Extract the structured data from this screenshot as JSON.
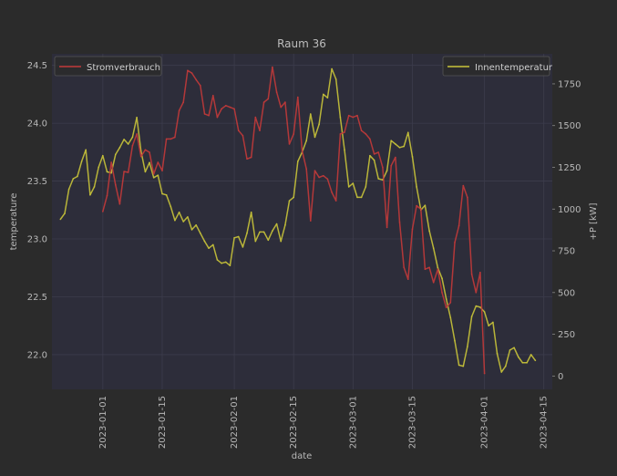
{
  "chart_data": {
    "type": "line",
    "title": "Raum 36",
    "xlabel": "date",
    "ylabel_left": "temperature",
    "ylabel_right": "+P [kW]",
    "x_ticks": [
      "2023-01-01",
      "2023-01-15",
      "2023-02-01",
      "2023-02-15",
      "2023-03-01",
      "2023-03-15",
      "2023-04-01",
      "2023-04-15"
    ],
    "x_range": [
      "2022-12-20",
      "2023-04-17"
    ],
    "y_left_ticks": [
      22.0,
      22.5,
      23.0,
      23.5,
      24.0,
      24.5
    ],
    "y_left_range": [
      21.7,
      24.6
    ],
    "y_right_ticks": [
      0,
      250,
      500,
      750,
      1000,
      1250,
      1500,
      1750
    ],
    "y_right_range": [
      -80,
      1930
    ],
    "grid": true,
    "series": [
      {
        "name": "Innentemperatur",
        "axis": "left",
        "color": "#c9c43a",
        "legend_position": "top-right",
        "points": [
          [
            "2022-12-22",
            23.17
          ],
          [
            "2022-12-23",
            23.22
          ],
          [
            "2022-12-24",
            23.43
          ],
          [
            "2022-12-25",
            23.52
          ],
          [
            "2022-12-26",
            23.54
          ],
          [
            "2022-12-27",
            23.67
          ],
          [
            "2022-12-28",
            23.77
          ],
          [
            "2022-12-29",
            23.38
          ],
          [
            "2022-12-30",
            23.45
          ],
          [
            "2022-12-31",
            23.62
          ],
          [
            "2023-01-01",
            23.72
          ],
          [
            "2023-01-02",
            23.58
          ],
          [
            "2023-01-03",
            23.57
          ],
          [
            "2023-01-04",
            23.73
          ],
          [
            "2023-01-05",
            23.79
          ],
          [
            "2023-01-06",
            23.86
          ],
          [
            "2023-01-07",
            23.82
          ],
          [
            "2023-01-08",
            23.88
          ],
          [
            "2023-01-09",
            24.05
          ],
          [
            "2023-01-10",
            23.76
          ],
          [
            "2023-01-11",
            23.58
          ],
          [
            "2023-01-12",
            23.66
          ],
          [
            "2023-01-13",
            23.53
          ],
          [
            "2023-01-14",
            23.55
          ],
          [
            "2023-01-15",
            23.39
          ],
          [
            "2023-01-16",
            23.38
          ],
          [
            "2023-01-17",
            23.28
          ],
          [
            "2023-01-18",
            23.16
          ],
          [
            "2023-01-19",
            23.23
          ],
          [
            "2023-01-20",
            23.15
          ],
          [
            "2023-01-21",
            23.19
          ],
          [
            "2023-01-22",
            23.08
          ],
          [
            "2023-01-23",
            23.12
          ],
          [
            "2023-01-24",
            23.05
          ],
          [
            "2023-01-25",
            22.98
          ],
          [
            "2023-01-26",
            22.92
          ],
          [
            "2023-01-27",
            22.95
          ],
          [
            "2023-01-28",
            22.82
          ],
          [
            "2023-01-29",
            22.79
          ],
          [
            "2023-01-30",
            22.8
          ],
          [
            "2023-01-31",
            22.77
          ],
          [
            "2023-02-01",
            23.01
          ],
          [
            "2023-02-02",
            23.02
          ],
          [
            "2023-02-03",
            22.93
          ],
          [
            "2023-02-04",
            23.05
          ],
          [
            "2023-02-05",
            23.23
          ],
          [
            "2023-02-06",
            22.98
          ],
          [
            "2023-02-07",
            23.06
          ],
          [
            "2023-02-08",
            23.06
          ],
          [
            "2023-02-09",
            22.99
          ],
          [
            "2023-02-10",
            23.07
          ],
          [
            "2023-02-11",
            23.13
          ],
          [
            "2023-02-12",
            22.98
          ],
          [
            "2023-02-13",
            23.12
          ],
          [
            "2023-02-14",
            23.33
          ],
          [
            "2023-02-15",
            23.36
          ],
          [
            "2023-02-16",
            23.67
          ],
          [
            "2023-02-17",
            23.75
          ],
          [
            "2023-02-18",
            23.85
          ],
          [
            "2023-02-19",
            24.08
          ],
          [
            "2023-02-20",
            23.88
          ],
          [
            "2023-02-21",
            23.99
          ],
          [
            "2023-02-22",
            24.25
          ],
          [
            "2023-02-23",
            24.22
          ],
          [
            "2023-02-24",
            24.47
          ],
          [
            "2023-02-25",
            24.38
          ],
          [
            "2023-02-26",
            24.05
          ],
          [
            "2023-02-27",
            23.77
          ],
          [
            "2023-02-28",
            23.45
          ],
          [
            "2023-03-01",
            23.48
          ],
          [
            "2023-03-02",
            23.36
          ],
          [
            "2023-03-03",
            23.36
          ],
          [
            "2023-03-04",
            23.45
          ],
          [
            "2023-03-05",
            23.72
          ],
          [
            "2023-03-06",
            23.68
          ],
          [
            "2023-03-07",
            23.52
          ],
          [
            "2023-03-08",
            23.51
          ],
          [
            "2023-03-09",
            23.59
          ],
          [
            "2023-03-10",
            23.85
          ],
          [
            "2023-03-11",
            23.82
          ],
          [
            "2023-03-12",
            23.79
          ],
          [
            "2023-03-13",
            23.8
          ],
          [
            "2023-03-14",
            23.92
          ],
          [
            "2023-03-15",
            23.71
          ],
          [
            "2023-03-16",
            23.45
          ],
          [
            "2023-03-17",
            23.25
          ],
          [
            "2023-03-18",
            23.29
          ],
          [
            "2023-03-19",
            23.07
          ],
          [
            "2023-03-20",
            22.92
          ],
          [
            "2023-03-21",
            22.75
          ],
          [
            "2023-03-22",
            22.66
          ],
          [
            "2023-03-23",
            22.48
          ],
          [
            "2023-03-24",
            22.32
          ],
          [
            "2023-03-25",
            22.12
          ],
          [
            "2023-03-26",
            21.91
          ],
          [
            "2023-03-27",
            21.9
          ],
          [
            "2023-03-28",
            22.07
          ],
          [
            "2023-03-29",
            22.33
          ],
          [
            "2023-03-30",
            22.42
          ],
          [
            "2023-03-31",
            22.41
          ],
          [
            "2023-04-01",
            22.37
          ],
          [
            "2023-04-02",
            22.25
          ],
          [
            "2023-04-03",
            22.28
          ],
          [
            "2023-04-04",
            22.01
          ],
          [
            "2023-04-05",
            21.85
          ],
          [
            "2023-04-06",
            21.9
          ],
          [
            "2023-04-07",
            22.04
          ],
          [
            "2023-04-08",
            22.06
          ],
          [
            "2023-04-09",
            21.98
          ],
          [
            "2023-04-10",
            21.93
          ],
          [
            "2023-04-11",
            21.93
          ],
          [
            "2023-04-12",
            22.0
          ],
          [
            "2023-04-13",
            21.95
          ]
        ]
      },
      {
        "name": "Stromverbrauch",
        "axis": "right",
        "color": "#c23a3a",
        "legend_position": "top-left",
        "points": [
          [
            "2023-01-01",
            985
          ],
          [
            "2023-01-02",
            1080
          ],
          [
            "2023-01-03",
            1280
          ],
          [
            "2023-01-04",
            1145
          ],
          [
            "2023-01-05",
            1030
          ],
          [
            "2023-01-06",
            1225
          ],
          [
            "2023-01-07",
            1220
          ],
          [
            "2023-01-08",
            1380
          ],
          [
            "2023-01-09",
            1450
          ],
          [
            "2023-01-10",
            1315
          ],
          [
            "2023-01-11",
            1355
          ],
          [
            "2023-01-12",
            1340
          ],
          [
            "2023-01-13",
            1210
          ],
          [
            "2023-01-14",
            1280
          ],
          [
            "2023-01-15",
            1230
          ],
          [
            "2023-01-16",
            1420
          ],
          [
            "2023-01-17",
            1420
          ],
          [
            "2023-01-18",
            1430
          ],
          [
            "2023-01-19",
            1590
          ],
          [
            "2023-01-20",
            1640
          ],
          [
            "2023-01-21",
            1830
          ],
          [
            "2023-01-22",
            1815
          ],
          [
            "2023-01-23",
            1775
          ],
          [
            "2023-01-24",
            1740
          ],
          [
            "2023-01-25",
            1570
          ],
          [
            "2023-01-26",
            1560
          ],
          [
            "2023-01-27",
            1680
          ],
          [
            "2023-01-28",
            1550
          ],
          [
            "2023-01-29",
            1600
          ],
          [
            "2023-01-30",
            1620
          ],
          [
            "2023-01-31",
            1610
          ],
          [
            "2023-02-01",
            1600
          ],
          [
            "2023-02-02",
            1470
          ],
          [
            "2023-02-03",
            1440
          ],
          [
            "2023-02-04",
            1300
          ],
          [
            "2023-02-05",
            1310
          ],
          [
            "2023-02-06",
            1550
          ],
          [
            "2023-02-07",
            1470
          ],
          [
            "2023-02-08",
            1640
          ],
          [
            "2023-02-09",
            1660
          ],
          [
            "2023-02-10",
            1850
          ],
          [
            "2023-02-11",
            1700
          ],
          [
            "2023-02-12",
            1610
          ],
          [
            "2023-02-13",
            1640
          ],
          [
            "2023-02-14",
            1390
          ],
          [
            "2023-02-15",
            1450
          ],
          [
            "2023-02-16",
            1670
          ],
          [
            "2023-02-17",
            1350
          ],
          [
            "2023-02-18",
            1240
          ],
          [
            "2023-02-19",
            930
          ],
          [
            "2023-02-20",
            1230
          ],
          [
            "2023-02-21",
            1190
          ],
          [
            "2023-02-22",
            1200
          ],
          [
            "2023-02-23",
            1180
          ],
          [
            "2023-02-24",
            1100
          ],
          [
            "2023-02-25",
            1050
          ],
          [
            "2023-02-26",
            1450
          ],
          [
            "2023-02-27",
            1460
          ],
          [
            "2023-02-28",
            1560
          ],
          [
            "2023-03-01",
            1550
          ],
          [
            "2023-03-02",
            1560
          ],
          [
            "2023-03-03",
            1470
          ],
          [
            "2023-03-04",
            1450
          ],
          [
            "2023-03-05",
            1420
          ],
          [
            "2023-03-06",
            1330
          ],
          [
            "2023-03-07",
            1340
          ],
          [
            "2023-03-08",
            1250
          ],
          [
            "2023-03-09",
            890
          ],
          [
            "2023-03-10",
            1260
          ],
          [
            "2023-03-11",
            1310
          ],
          [
            "2023-03-12",
            920
          ],
          [
            "2023-03-13",
            650
          ],
          [
            "2023-03-14",
            580
          ],
          [
            "2023-03-15",
            880
          ],
          [
            "2023-03-16",
            1020
          ],
          [
            "2023-03-17",
            1000
          ],
          [
            "2023-03-18",
            640
          ],
          [
            "2023-03-19",
            650
          ],
          [
            "2023-03-20",
            560
          ],
          [
            "2023-03-21",
            640
          ],
          [
            "2023-03-22",
            500
          ],
          [
            "2023-03-23",
            410
          ],
          [
            "2023-03-24",
            440
          ],
          [
            "2023-03-25",
            800
          ],
          [
            "2023-03-26",
            900
          ],
          [
            "2023-03-27",
            1140
          ],
          [
            "2023-03-28",
            1070
          ],
          [
            "2023-03-29",
            610
          ],
          [
            "2023-03-30",
            500
          ],
          [
            "2023-03-31",
            620
          ],
          [
            "2023-04-01",
            15
          ]
        ]
      }
    ]
  }
}
